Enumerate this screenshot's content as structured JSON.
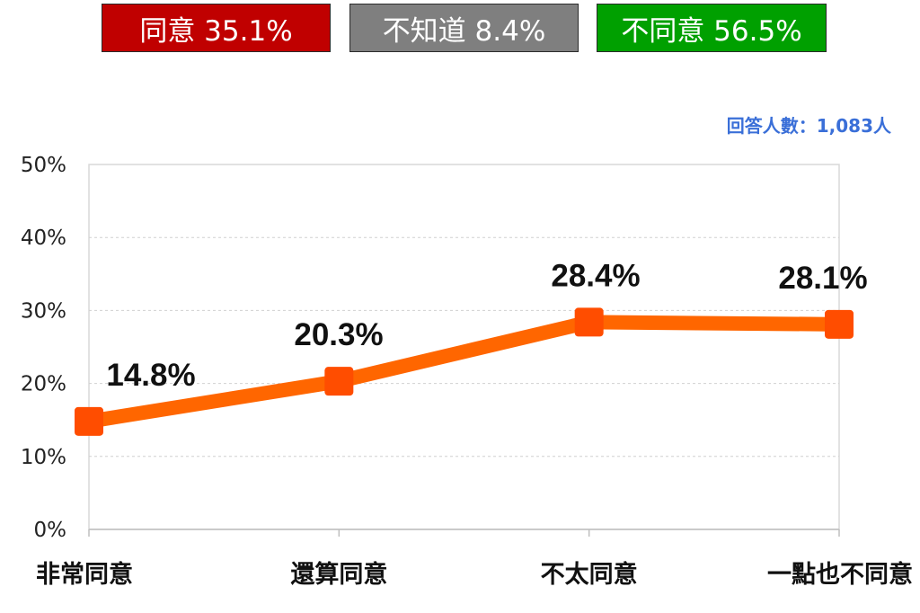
{
  "summary": {
    "agree": {
      "label": "同意 35.1%",
      "color": "#c00000"
    },
    "unknown": {
      "label": "不知道 8.4%",
      "color": "#7f7f7f"
    },
    "disagree": {
      "label": "不同意 56.5%",
      "color": "#00a000"
    }
  },
  "respondents": {
    "label": "回答人數：1,083人",
    "color": "#3a6fd8"
  },
  "chart_data": {
    "type": "line",
    "categories": [
      "非常同意",
      "還算同意",
      "不太同意",
      "一點也不同意"
    ],
    "values": [
      14.8,
      20.3,
      28.4,
      28.1
    ],
    "data_labels": [
      "14.8%",
      "20.3%",
      "28.4%",
      "28.1%"
    ],
    "y_ticks": [
      "0%",
      "10%",
      "20%",
      "30%",
      "40%",
      "50%"
    ],
    "ylim": [
      0,
      50
    ],
    "grid": true,
    "line_color": "#ff6600",
    "marker_color": "#ff4d00"
  }
}
